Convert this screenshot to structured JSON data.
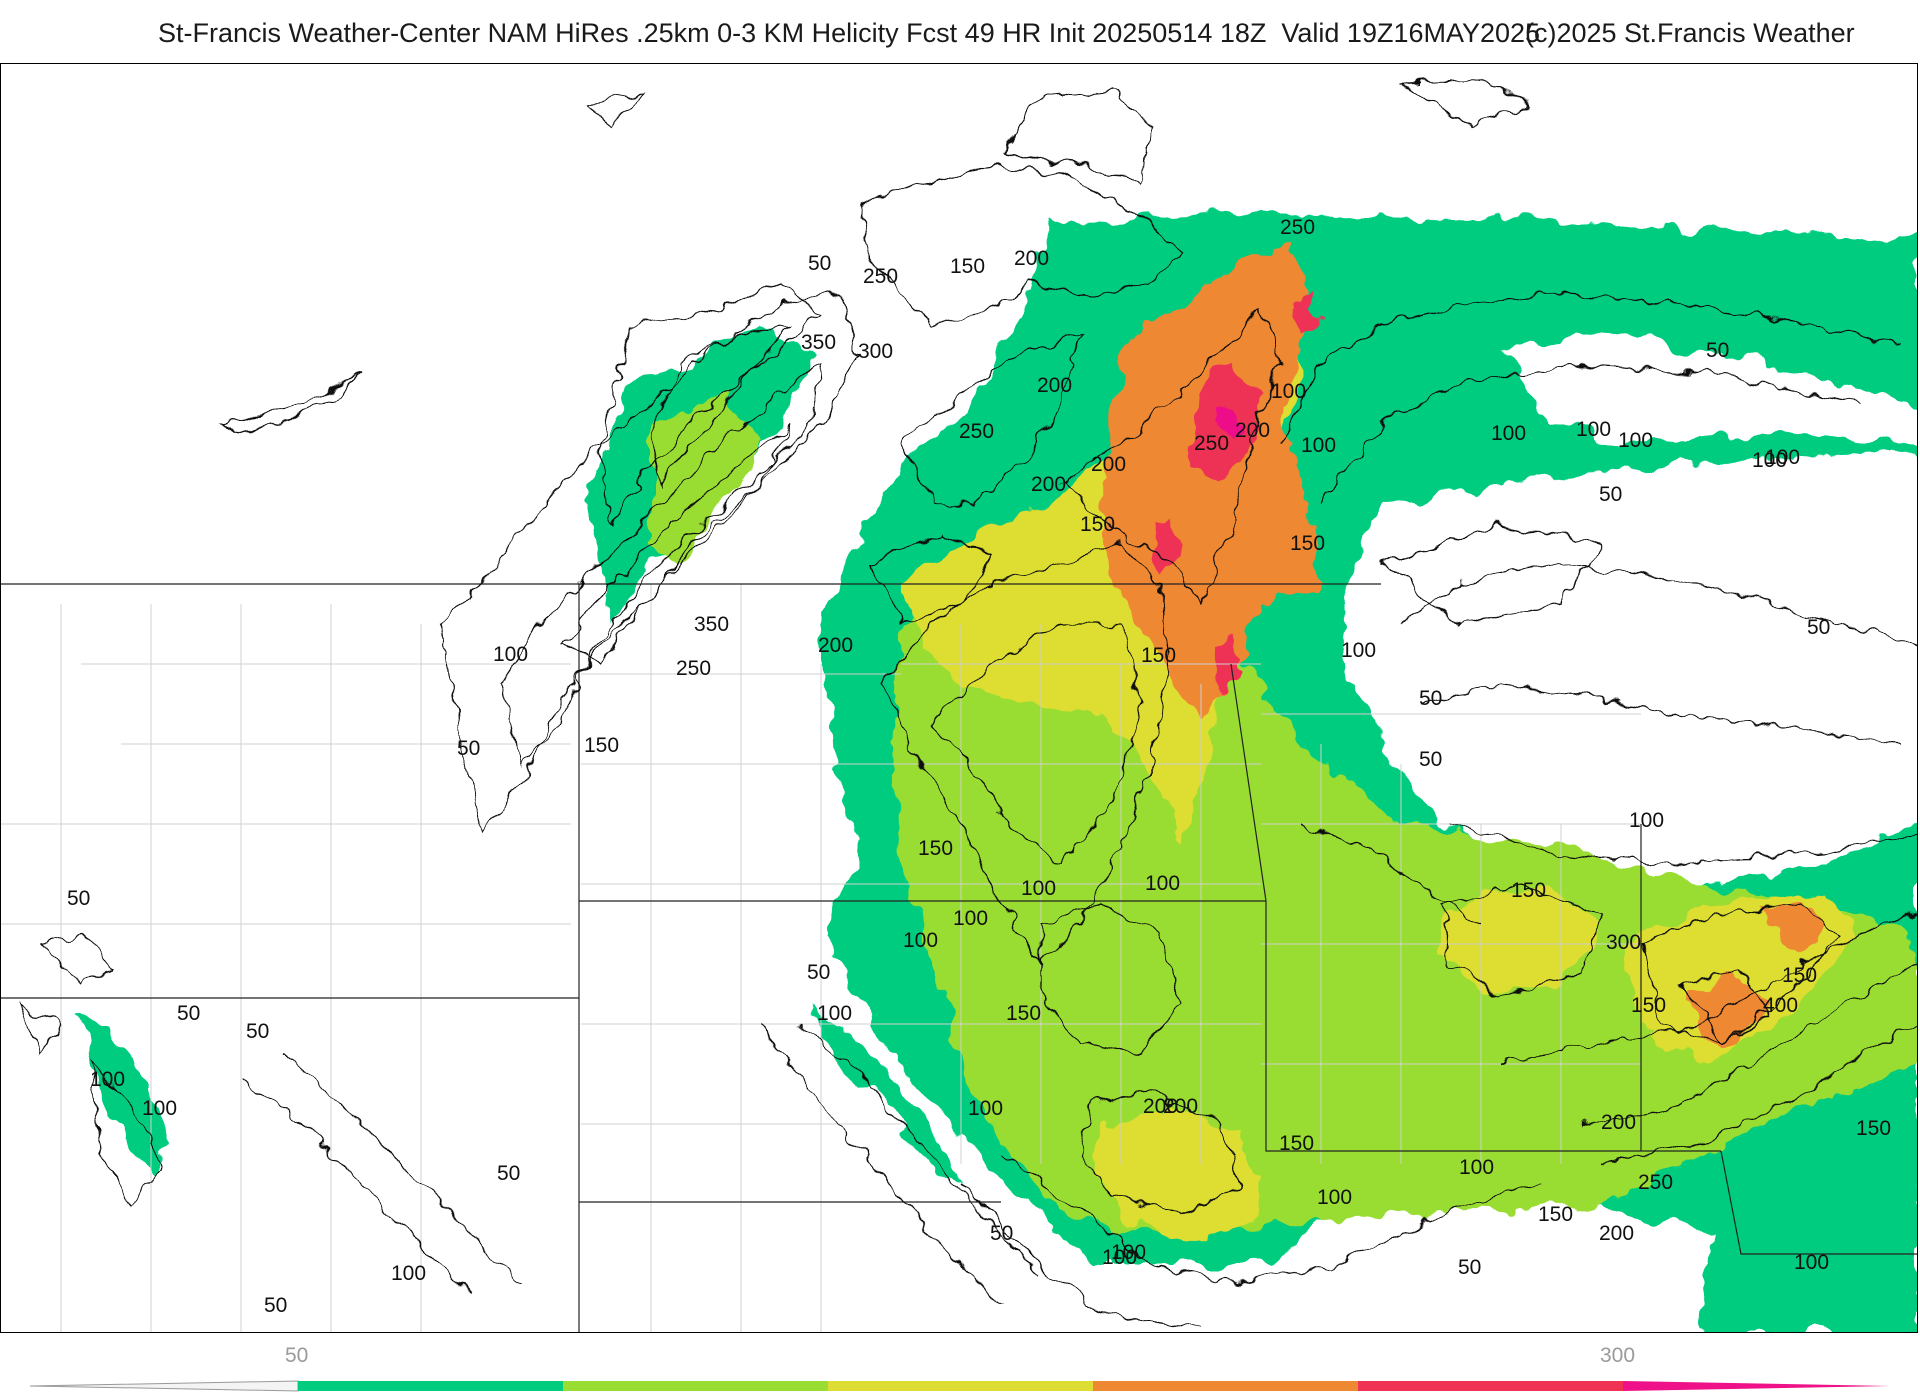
{
  "header": {
    "title": "St-Francis Weather-Center NAM HiRes .25km 0-3 KM Helicity Fcst 49 HR Init 20250514 18Z  Valid 19Z16MAY2025",
    "copyright": "(c)2025 St.Francis Weather"
  },
  "colorbar": {
    "ticks": [
      "50",
      "300"
    ],
    "colors": [
      "#00cc80",
      "#99dd33",
      "#dddd33",
      "#ee8833",
      "#ee3355",
      "#ee1188"
    ]
  },
  "map": {
    "contour_labels": [
      "50",
      "250",
      "150",
      "200",
      "350",
      "300",
      "200",
      "250",
      "100",
      "200",
      "250",
      "250",
      "200",
      "150",
      "200",
      "350",
      "100",
      "200",
      "150",
      "250",
      "100",
      "50",
      "100",
      "150",
      "100",
      "50",
      "50",
      "100",
      "50",
      "150",
      "100",
      "100",
      "150",
      "100",
      "100",
      "50",
      "100",
      "100",
      "50",
      "150",
      "100",
      "300",
      "150",
      "400",
      "150",
      "200",
      "150",
      "100",
      "50",
      "200",
      "50",
      "100",
      "100",
      "200",
      "100",
      "150",
      "250",
      "150",
      "200",
      "50",
      "100",
      "150",
      "100",
      "100",
      "50",
      "50",
      "50",
      "100",
      "100",
      "100",
      "50",
      "100",
      "50"
    ]
  }
}
